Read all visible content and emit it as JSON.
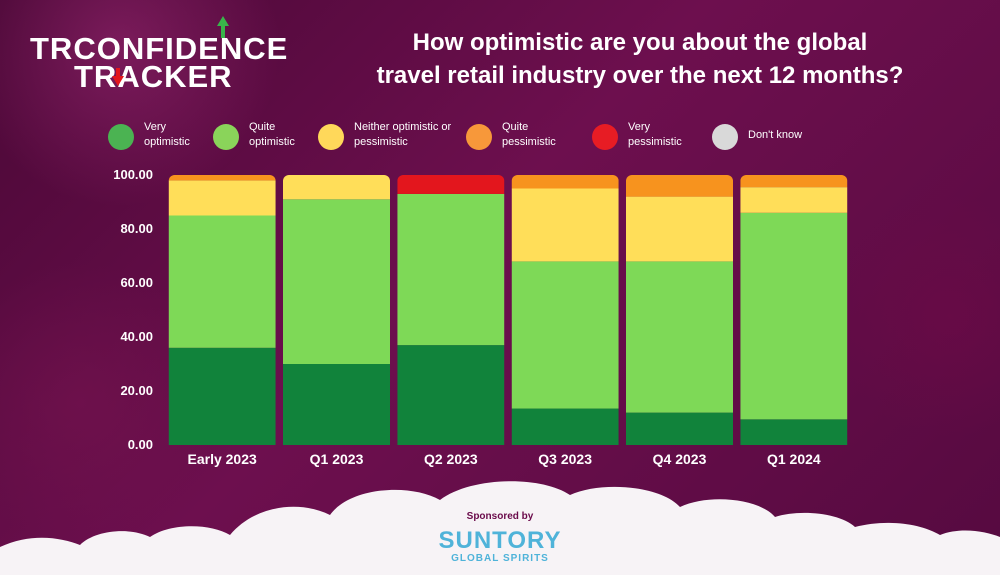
{
  "logo": {
    "part1": "TR",
    "part2": "CONFIDENCE",
    "part3": "TRACKER"
  },
  "title_line1": "How optimistic are you about the global",
  "title_line2": "travel retail industry over the next 12 months?",
  "legend": [
    {
      "label": "Very optimistic",
      "color": "#4bb352"
    },
    {
      "label": "Quite optimistic",
      "color": "#8ad45a"
    },
    {
      "label": "Neither optimistic or pessimistic",
      "color": "#ffd85a"
    },
    {
      "label": "Quite pessimistic",
      "color": "#f7983a"
    },
    {
      "label": "Very pessimistic",
      "color": "#e71c24"
    },
    {
      "label": "Don't know",
      "color": "#d9d9d9"
    }
  ],
  "chart_data": {
    "type": "bar",
    "stacked": true,
    "title": "How optimistic are you about the global travel retail industry over the next 12 months?",
    "categories": [
      "Early 2023",
      "Q1 2023",
      "Q2 2023",
      "Q3 2023",
      "Q4 2023",
      "Q1 2024"
    ],
    "ylim": [
      0,
      100
    ],
    "yticks": [
      "0.00",
      "20.00",
      "40.00",
      "60.00",
      "80.00",
      "100.00"
    ],
    "series": [
      {
        "name": "Very optimistic",
        "color": "#11833b",
        "values": [
          36,
          30,
          37,
          13.5,
          12,
          9.5
        ]
      },
      {
        "name": "Quite optimistic",
        "color": "#7ed957",
        "values": [
          49,
          61,
          56,
          54.5,
          56,
          76.5
        ]
      },
      {
        "name": "Neither optimistic or pessimistic",
        "color": "#ffde59",
        "values": [
          13,
          9,
          0,
          27,
          24,
          9.5
        ]
      },
      {
        "name": "Quite pessimistic",
        "color": "#f7931e",
        "values": [
          2,
          0,
          0,
          5,
          8,
          4.5
        ]
      },
      {
        "name": "Very pessimistic",
        "color": "#e3161d",
        "values": [
          0,
          0,
          7,
          0,
          0,
          0
        ]
      },
      {
        "name": "Don't know",
        "color": "#d9d9d9",
        "values": [
          0,
          0,
          0,
          0,
          0,
          0
        ]
      }
    ]
  },
  "sponsor": {
    "label": "Sponsored by",
    "brand": "SUNTORY",
    "sub": "GLOBAL SPIRITS"
  }
}
